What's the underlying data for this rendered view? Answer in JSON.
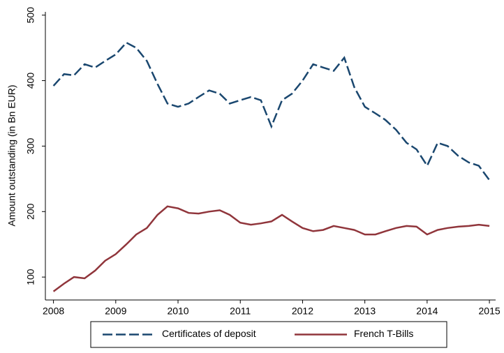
{
  "chart_data": {
    "type": "line",
    "y_label": "Amount outstanding (in Bn EUR)",
    "x": [
      2008,
      2008.17,
      2008.33,
      2008.5,
      2008.67,
      2008.83,
      2009,
      2009.17,
      2009.33,
      2009.5,
      2009.67,
      2009.83,
      2010,
      2010.17,
      2010.33,
      2010.5,
      2010.67,
      2010.83,
      2011,
      2011.17,
      2011.33,
      2011.5,
      2011.67,
      2011.83,
      2012,
      2012.17,
      2012.33,
      2012.5,
      2012.67,
      2012.83,
      2013,
      2013.17,
      2013.33,
      2013.5,
      2013.67,
      2013.83,
      2014,
      2014.17,
      2014.33,
      2014.5,
      2014.67,
      2014.83,
      2015
    ],
    "series": [
      {
        "name": "Certificates of deposit",
        "color": "#1a476f",
        "line_style": "dashed",
        "values": [
          392,
          410,
          408,
          425,
          420,
          430,
          440,
          458,
          450,
          430,
          395,
          365,
          360,
          365,
          375,
          385,
          380,
          365,
          370,
          375,
          370,
          330,
          370,
          380,
          400,
          425,
          420,
          415,
          435,
          390,
          360,
          350,
          340,
          325,
          305,
          295,
          270,
          305,
          300,
          285,
          275,
          270,
          248
        ]
      },
      {
        "name": "French T-Bills",
        "color": "#90353b",
        "line_style": "solid",
        "values": [
          78,
          90,
          100,
          98,
          110,
          125,
          135,
          150,
          165,
          175,
          195,
          208,
          205,
          198,
          197,
          200,
          202,
          195,
          183,
          180,
          182,
          185,
          195,
          185,
          175,
          170,
          172,
          178,
          175,
          172,
          165,
          165,
          170,
          175,
          178,
          177,
          165,
          172,
          175,
          177,
          178,
          180,
          178
        ]
      }
    ],
    "xlim": [
      2007.87,
      2015.1
    ],
    "xticks": [
      2008,
      2009,
      2010,
      2011,
      2012,
      2013,
      2014,
      2015
    ],
    "ylim": [
      65,
      505
    ],
    "yticks": [
      100,
      200,
      300,
      400,
      500
    ],
    "grid": false,
    "legend_position": "bottom"
  }
}
